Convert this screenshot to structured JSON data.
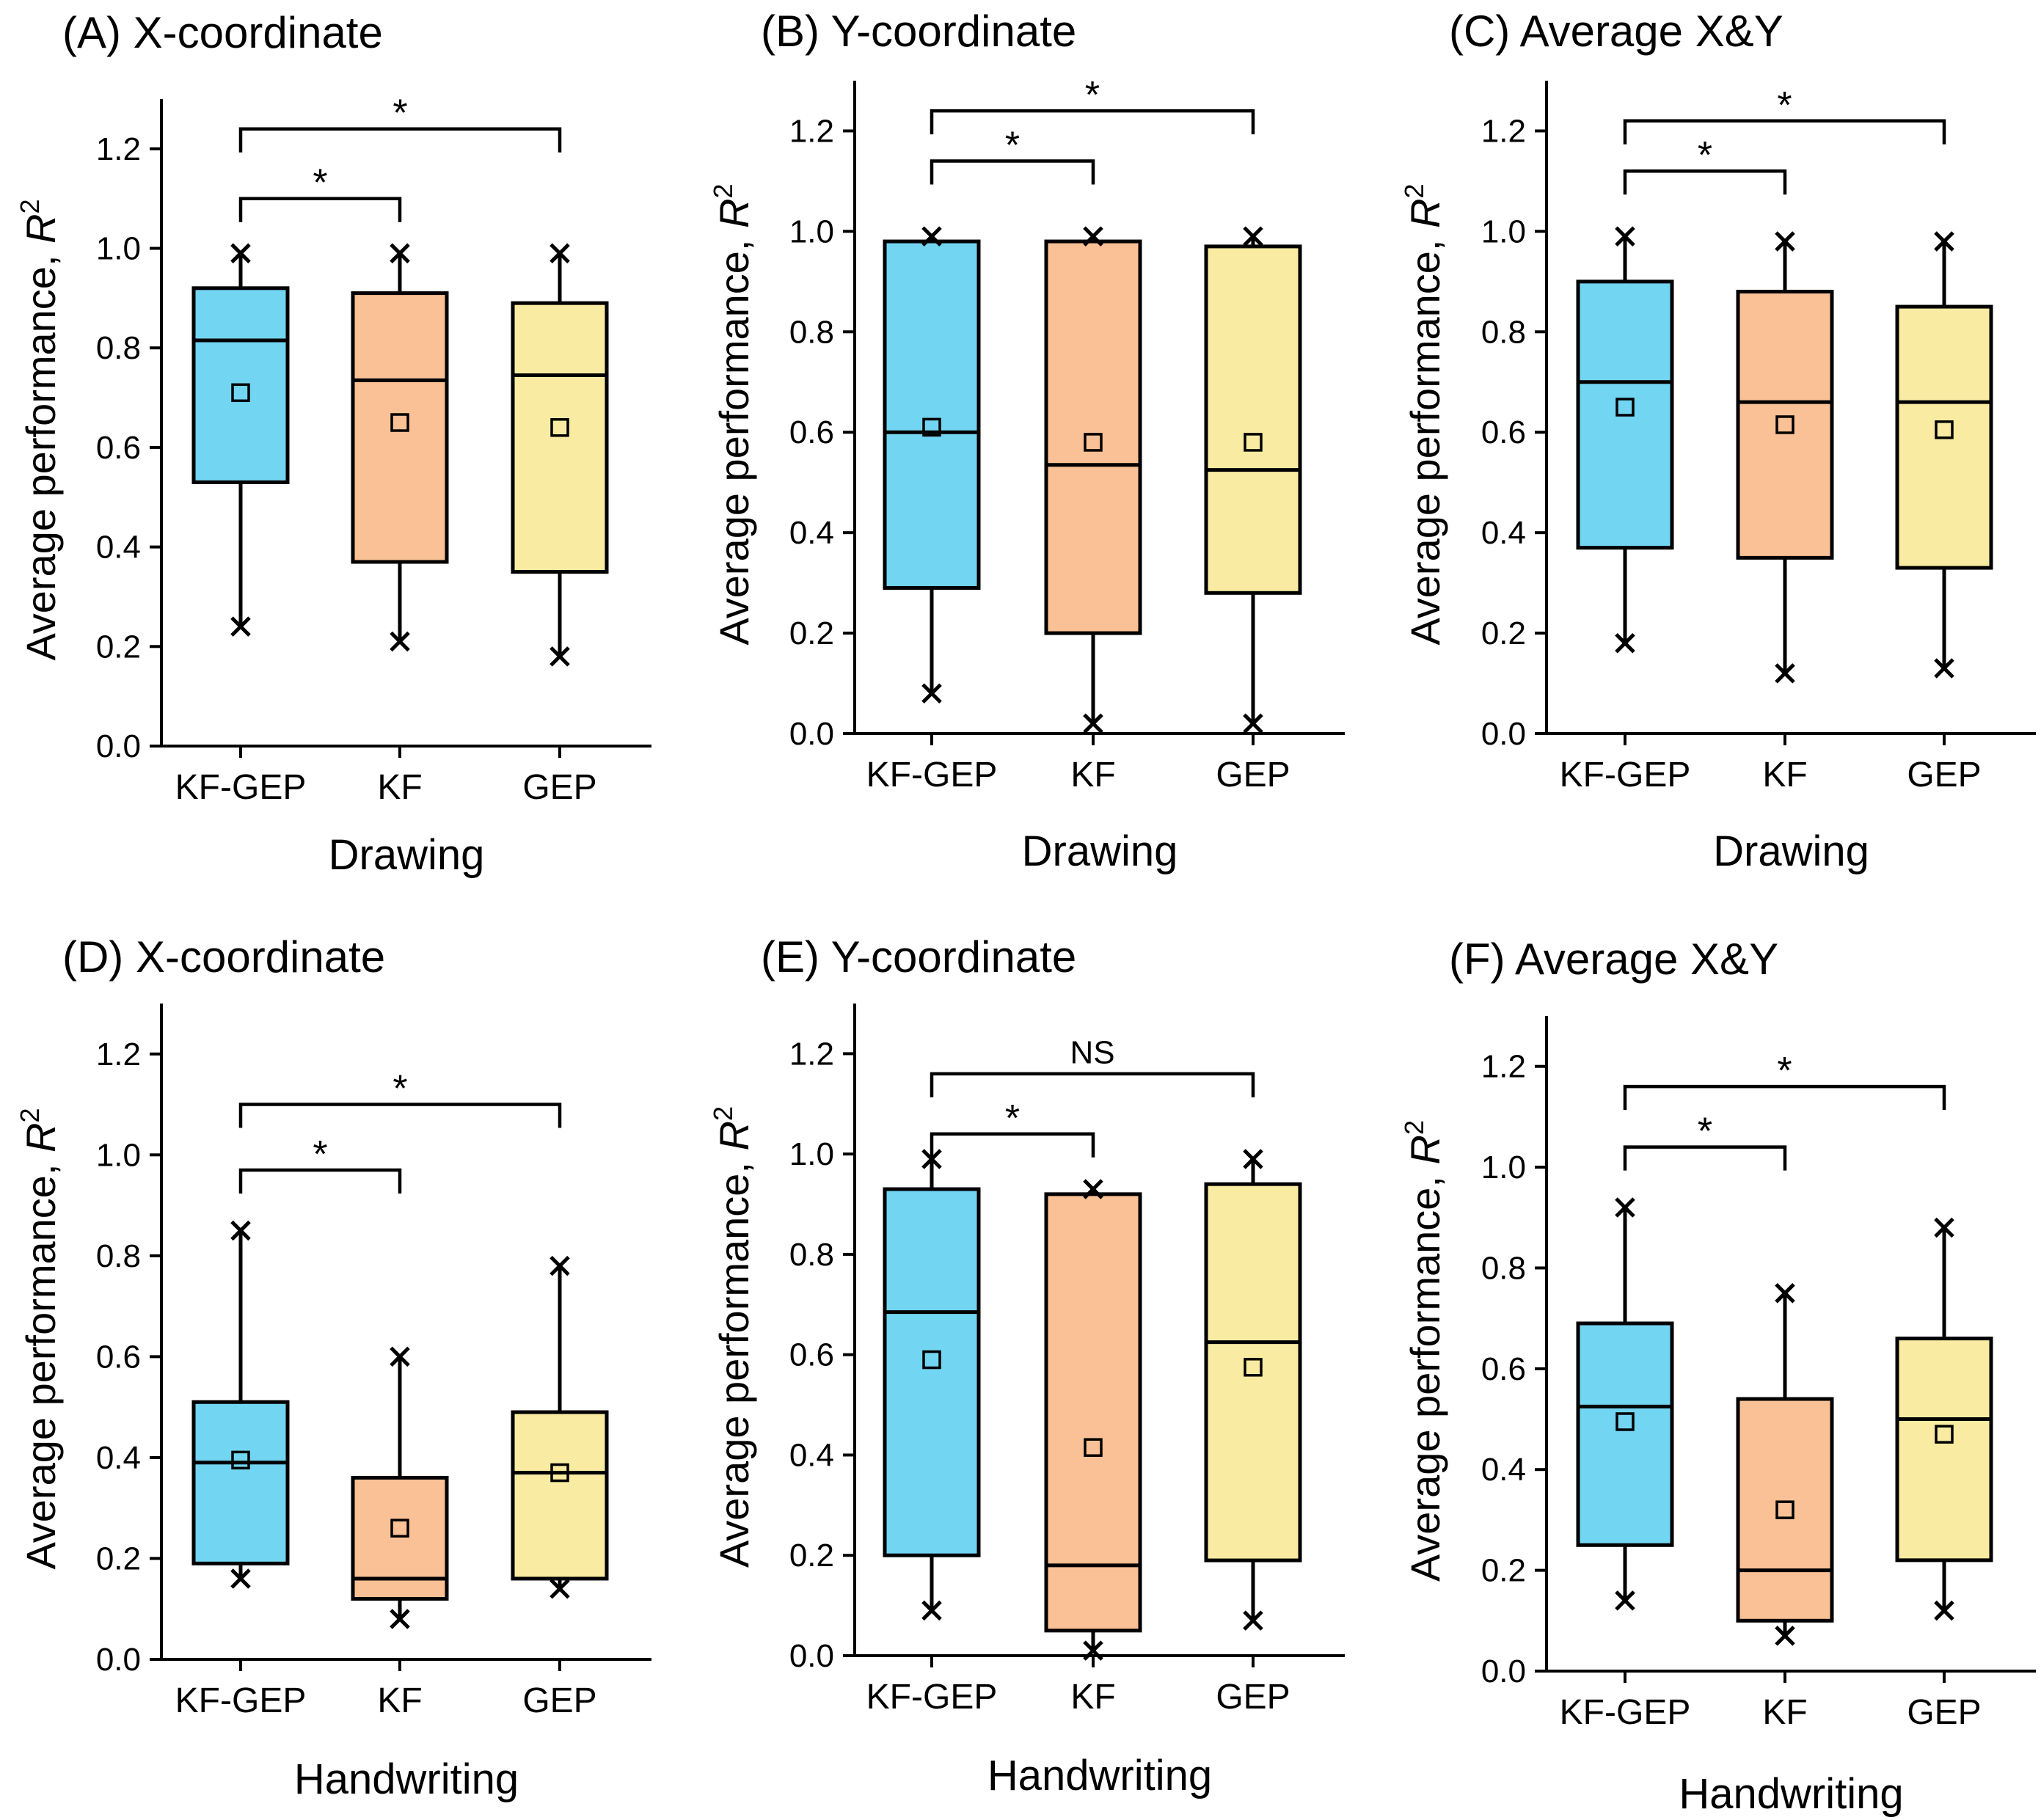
{
  "colors": {
    "KF-GEP": "#72d5f2",
    "KF": "#f9c195",
    "GEP": "#f9eca2"
  },
  "chart_data": [
    {
      "type": "box",
      "title": "(A) X-coordinate",
      "xlabel": "Drawing",
      "ylabel_main": "Average performance, ",
      "ylabel_var": "R",
      "ylabel_sup": "2",
      "ylim": [
        0,
        1.3
      ],
      "yticks": [
        "0.0",
        "0.2",
        "0.4",
        "0.6",
        "0.8",
        "1.0",
        "1.2"
      ],
      "categories": [
        "KF-GEP",
        "KF",
        "GEP"
      ],
      "boxes": [
        {
          "name": "KF-GEP",
          "q1": 0.53,
          "median": 0.815,
          "q3": 0.92,
          "min": 0.24,
          "max": 0.99,
          "mean": 0.71
        },
        {
          "name": "KF",
          "q1": 0.37,
          "median": 0.735,
          "q3": 0.91,
          "min": 0.21,
          "max": 0.99,
          "mean": 0.65
        },
        {
          "name": "GEP",
          "q1": 0.35,
          "median": 0.745,
          "q3": 0.89,
          "min": 0.18,
          "max": 0.99,
          "mean": 0.64
        }
      ],
      "comparisons": [
        {
          "pair": [
            "KF-GEP",
            "KF"
          ],
          "label": "*",
          "level": 1.1
        },
        {
          "pair": [
            "KF-GEP",
            "GEP"
          ],
          "label": "*",
          "level": 1.24
        }
      ]
    },
    {
      "type": "box",
      "title": "(B) Y-coordinate",
      "xlabel": "Drawing",
      "ylabel_main": "Average performance, ",
      "ylabel_var": "R",
      "ylabel_sup": "2",
      "ylim": [
        0,
        1.3
      ],
      "yticks": [
        "0.0",
        "0.2",
        "0.4",
        "0.6",
        "0.8",
        "1.0",
        "1.2"
      ],
      "categories": [
        "KF-GEP",
        "KF",
        "GEP"
      ],
      "boxes": [
        {
          "name": "KF-GEP",
          "q1": 0.29,
          "median": 0.6,
          "q3": 0.98,
          "min": 0.08,
          "max": 0.99,
          "mean": 0.61
        },
        {
          "name": "KF",
          "q1": 0.2,
          "median": 0.535,
          "q3": 0.98,
          "min": 0.02,
          "max": 0.99,
          "mean": 0.58
        },
        {
          "name": "GEP",
          "q1": 0.28,
          "median": 0.525,
          "q3": 0.97,
          "min": 0.02,
          "max": 0.99,
          "mean": 0.58
        }
      ],
      "comparisons": [
        {
          "pair": [
            "KF-GEP",
            "KF"
          ],
          "label": "*",
          "level": 1.14
        },
        {
          "pair": [
            "KF-GEP",
            "GEP"
          ],
          "label": "*",
          "level": 1.24
        }
      ]
    },
    {
      "type": "box",
      "title": "(C) Average X&Y",
      "xlabel": "Drawing",
      "ylabel_main": "Average performance, ",
      "ylabel_var": "R",
      "ylabel_sup": "2",
      "ylim": [
        0,
        1.3
      ],
      "yticks": [
        "0.0",
        "0.2",
        "0.4",
        "0.6",
        "0.8",
        "1.0",
        "1.2"
      ],
      "categories": [
        "KF-GEP",
        "KF",
        "GEP"
      ],
      "boxes": [
        {
          "name": "KF-GEP",
          "q1": 0.37,
          "median": 0.7,
          "q3": 0.9,
          "min": 0.18,
          "max": 0.99,
          "mean": 0.65
        },
        {
          "name": "KF",
          "q1": 0.35,
          "median": 0.66,
          "q3": 0.88,
          "min": 0.12,
          "max": 0.98,
          "mean": 0.615
        },
        {
          "name": "GEP",
          "q1": 0.33,
          "median": 0.66,
          "q3": 0.85,
          "min": 0.13,
          "max": 0.98,
          "mean": 0.605
        }
      ],
      "comparisons": [
        {
          "pair": [
            "KF-GEP",
            "KF"
          ],
          "label": "*",
          "level": 1.12
        },
        {
          "pair": [
            "KF-GEP",
            "GEP"
          ],
          "label": "*",
          "level": 1.22
        }
      ]
    },
    {
      "type": "box",
      "title": "(D) X-coordinate",
      "xlabel": "Handwriting",
      "ylabel_main": "Average performance, ",
      "ylabel_var": "R",
      "ylabel_sup": "2",
      "ylim": [
        0,
        1.3
      ],
      "yticks": [
        "0.0",
        "0.2",
        "0.4",
        "0.6",
        "0.8",
        "1.0",
        "1.2"
      ],
      "categories": [
        "KF-GEP",
        "KF",
        "GEP"
      ],
      "boxes": [
        {
          "name": "KF-GEP",
          "q1": 0.19,
          "median": 0.39,
          "q3": 0.51,
          "min": 0.16,
          "max": 0.85,
          "mean": 0.395
        },
        {
          "name": "KF",
          "q1": 0.12,
          "median": 0.16,
          "q3": 0.36,
          "min": 0.08,
          "max": 0.6,
          "mean": 0.26
        },
        {
          "name": "GEP",
          "q1": 0.16,
          "median": 0.37,
          "q3": 0.49,
          "min": 0.14,
          "max": 0.78,
          "mean": 0.37
        }
      ],
      "comparisons": [
        {
          "pair": [
            "KF-GEP",
            "KF"
          ],
          "label": "*",
          "level": 0.97
        },
        {
          "pair": [
            "KF-GEP",
            "GEP"
          ],
          "label": "*",
          "level": 1.1
        }
      ]
    },
    {
      "type": "box",
      "title": "(E) Y-coordinate",
      "xlabel": "Handwriting",
      "ylabel_main": "Average performance, ",
      "ylabel_var": "R",
      "ylabel_sup": "2",
      "ylim": [
        0,
        1.3
      ],
      "yticks": [
        "0.0",
        "0.2",
        "0.4",
        "0.6",
        "0.8",
        "1.0",
        "1.2"
      ],
      "categories": [
        "KF-GEP",
        "KF",
        "GEP"
      ],
      "boxes": [
        {
          "name": "KF-GEP",
          "q1": 0.2,
          "median": 0.685,
          "q3": 0.93,
          "min": 0.09,
          "max": 0.99,
          "mean": 0.59
        },
        {
          "name": "KF",
          "q1": 0.05,
          "median": 0.18,
          "q3": 0.92,
          "min": 0.01,
          "max": 0.93,
          "mean": 0.415
        },
        {
          "name": "GEP",
          "q1": 0.19,
          "median": 0.625,
          "q3": 0.94,
          "min": 0.07,
          "max": 0.99,
          "mean": 0.575
        }
      ],
      "comparisons": [
        {
          "pair": [
            "KF-GEP",
            "KF"
          ],
          "label": "*",
          "level": 1.04
        },
        {
          "pair": [
            "KF-GEP",
            "GEP"
          ],
          "label": "NS",
          "level": 1.16
        }
      ]
    },
    {
      "type": "box",
      "title": "(F) Average X&Y",
      "xlabel": "Handwriting",
      "ylabel_main": "Average performance, ",
      "ylabel_var": "R",
      "ylabel_sup": "2",
      "ylim": [
        0,
        1.3
      ],
      "yticks": [
        "0.0",
        "0.2",
        "0.4",
        "0.6",
        "0.8",
        "1.0",
        "1.2"
      ],
      "categories": [
        "KF-GEP",
        "KF",
        "GEP"
      ],
      "boxes": [
        {
          "name": "KF-GEP",
          "q1": 0.25,
          "median": 0.525,
          "q3": 0.69,
          "min": 0.14,
          "max": 0.92,
          "mean": 0.495
        },
        {
          "name": "KF",
          "q1": 0.1,
          "median": 0.2,
          "q3": 0.54,
          "min": 0.07,
          "max": 0.75,
          "mean": 0.32
        },
        {
          "name": "GEP",
          "q1": 0.22,
          "median": 0.5,
          "q3": 0.66,
          "min": 0.12,
          "max": 0.88,
          "mean": 0.47
        }
      ],
      "comparisons": [
        {
          "pair": [
            "KF-GEP",
            "KF"
          ],
          "label": "*",
          "level": 1.04
        },
        {
          "pair": [
            "KF-GEP",
            "GEP"
          ],
          "label": "*",
          "level": 1.16
        }
      ]
    }
  ]
}
